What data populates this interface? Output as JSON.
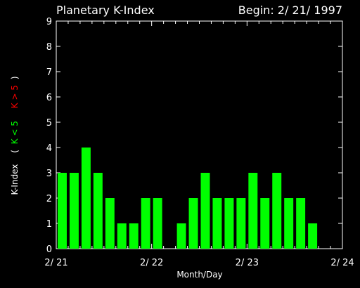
{
  "chart_data": {
    "type": "bar",
    "title": "Planetary K-Index",
    "subtitle": "Begin: 2/ 21/ 1997",
    "xlabel": "Month/Day",
    "ylabel": {
      "prefix": "K-Index",
      "open": "(",
      "low": "K < 5",
      "high": "K > 5",
      "close": ")"
    },
    "ylim": [
      0,
      9
    ],
    "yticks": [
      "0",
      "1",
      "2",
      "3",
      "4",
      "5",
      "6",
      "7",
      "8",
      "9"
    ],
    "xticks": [
      "2/ 21",
      "2/ 22",
      "2/ 23",
      "2/ 24"
    ],
    "slots_per_day": 8,
    "values": [
      3,
      3,
      4,
      3,
      2,
      1,
      1,
      2,
      2,
      null,
      1,
      2,
      3,
      2,
      2,
      2,
      3,
      2,
      3,
      2,
      2,
      1
    ],
    "colors": {
      "low": "#00ff00",
      "high": "#ff0000",
      "axis": "#ffffff",
      "background": "#000000"
    }
  }
}
